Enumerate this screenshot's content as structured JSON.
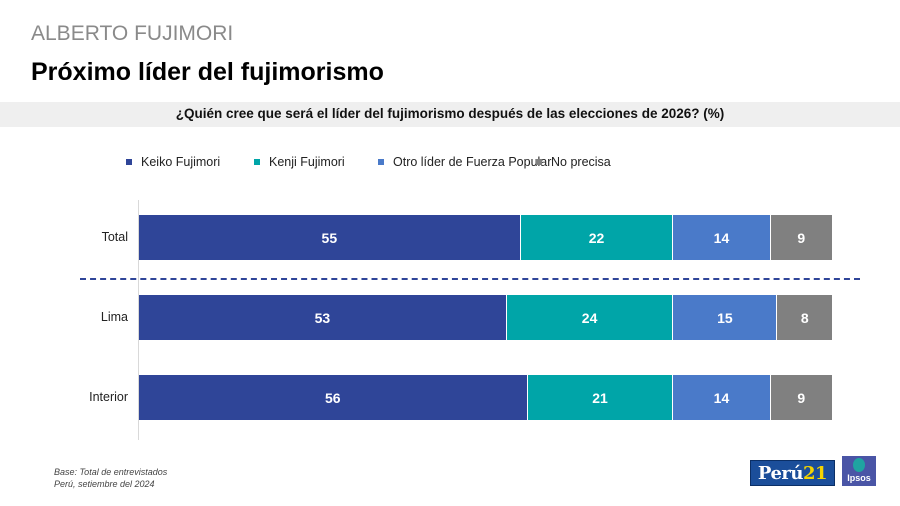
{
  "header": {
    "supertitle": "ALBERTO FUJIMORI",
    "title": "Próximo líder del fujimorismo",
    "question": "¿Quién cree que será el líder del fujimorismo después de las elecciones de 2026? (%)"
  },
  "footer": {
    "base_note": "Base: Total de entrevistados",
    "date_note": "Perú, setiembre del 2024"
  },
  "logos": {
    "peru21_text": "Perú",
    "peru21_num": "21",
    "ipsos_text": "Ipsos"
  },
  "chart_data": {
    "type": "bar",
    "orientation": "horizontal",
    "stacked": true,
    "title": "¿Quién cree que será el líder del fujimorismo después de las elecciones de 2026? (%)",
    "xlabel": "",
    "ylabel": "",
    "xlim": [
      0,
      100
    ],
    "grid": false,
    "legend_position": "top",
    "categories": [
      "Total",
      "Lima",
      "Interior"
    ],
    "series": [
      {
        "name": "Keiko Fujimori",
        "color": "#2f4598",
        "values": [
          55,
          53,
          56
        ]
      },
      {
        "name": "Kenji Fujimori",
        "color": "#00a5a8",
        "values": [
          22,
          24,
          21
        ]
      },
      {
        "name": "Otro líder de Fuerza Popular",
        "color": "#4a7ac9",
        "values": [
          14,
          15,
          14
        ]
      },
      {
        "name": "No precisa",
        "color": "#808080",
        "values": [
          9,
          8,
          9
        ]
      }
    ],
    "annotations": [
      "dashed separator between Total and Lima"
    ]
  }
}
